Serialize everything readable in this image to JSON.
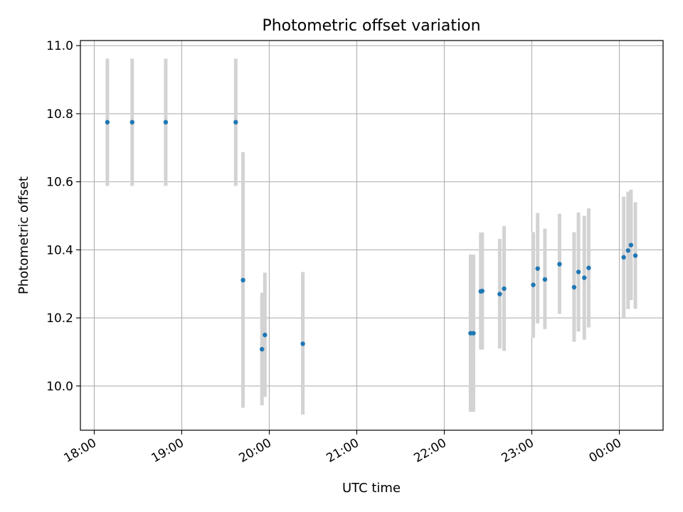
{
  "chart_data": {
    "type": "scatter",
    "title": "Photometric offset variation",
    "xlabel": "UTC time",
    "ylabel": "Photometric offset",
    "x_ticks": [
      "18:00",
      "19:00",
      "20:00",
      "21:00",
      "22:00",
      "23:00",
      "00:00"
    ],
    "x_tick_minutes": [
      1080,
      1140,
      1200,
      1260,
      1320,
      1380,
      1440
    ],
    "xlim_minutes": [
      1070.5,
      1470
    ],
    "ylim": [
      9.87,
      11.015
    ],
    "y_ticks": [
      10.0,
      10.2,
      10.4,
      10.6,
      10.8,
      11.0
    ],
    "y_tick_labels": [
      "10.0",
      "10.2",
      "10.4",
      "10.6",
      "10.8",
      "11.0"
    ],
    "grid": true,
    "colors": {
      "points": "#1f77b4",
      "errorbars": "#d3d3d3",
      "grid": "#b0b0b0"
    },
    "points": [
      {
        "x": "18:09",
        "y": 10.775,
        "ylo": 10.588,
        "yhi": 10.962
      },
      {
        "x": "18:26",
        "y": 10.775,
        "ylo": 10.588,
        "yhi": 10.962
      },
      {
        "x": "18:49",
        "y": 10.775,
        "ylo": 10.588,
        "yhi": 10.962
      },
      {
        "x": "19:37",
        "y": 10.775,
        "ylo": 10.588,
        "yhi": 10.962
      },
      {
        "x": "19:42",
        "y": 10.311,
        "ylo": 9.936,
        "yhi": 10.687
      },
      {
        "x": "19:55",
        "y": 10.108,
        "ylo": 9.943,
        "yhi": 10.274
      },
      {
        "x": "19:57",
        "y": 10.15,
        "ylo": 9.968,
        "yhi": 10.333
      },
      {
        "x": "20:23",
        "y": 10.124,
        "ylo": 9.916,
        "yhi": 10.335
      },
      {
        "x": "22:18",
        "y": 10.155,
        "ylo": 9.924,
        "yhi": 10.386
      },
      {
        "x": "22:20",
        "y": 10.155,
        "ylo": 9.924,
        "yhi": 10.386
      },
      {
        "x": "22:25",
        "y": 10.278,
        "ylo": 10.107,
        "yhi": 10.451
      },
      {
        "x": "22:26",
        "y": 10.279,
        "ylo": 10.107,
        "yhi": 10.451
      },
      {
        "x": "22:38",
        "y": 10.27,
        "ylo": 10.11,
        "yhi": 10.432
      },
      {
        "x": "22:41",
        "y": 10.286,
        "ylo": 10.103,
        "yhi": 10.47
      },
      {
        "x": "23:01",
        "y": 10.297,
        "ylo": 10.142,
        "yhi": 10.452
      },
      {
        "x": "23:04",
        "y": 10.345,
        "ylo": 10.184,
        "yhi": 10.508
      },
      {
        "x": "23:09",
        "y": 10.313,
        "ylo": 10.167,
        "yhi": 10.462
      },
      {
        "x": "23:19",
        "y": 10.358,
        "ylo": 10.212,
        "yhi": 10.506
      },
      {
        "x": "23:29",
        "y": 10.29,
        "ylo": 10.13,
        "yhi": 10.452
      },
      {
        "x": "23:32",
        "y": 10.335,
        "ylo": 10.16,
        "yhi": 10.51
      },
      {
        "x": "23:36",
        "y": 10.318,
        "ylo": 10.136,
        "yhi": 10.5
      },
      {
        "x": "23:39",
        "y": 10.347,
        "ylo": 10.172,
        "yhi": 10.522
      },
      {
        "x": "00:03",
        "y": 10.378,
        "ylo": 10.202,
        "yhi": 10.556
      },
      {
        "x": "00:06",
        "y": 10.398,
        "ylo": 10.226,
        "yhi": 10.571
      },
      {
        "x": "00:08",
        "y": 10.414,
        "ylo": 10.252,
        "yhi": 10.577
      },
      {
        "x": "00:11",
        "y": 10.383,
        "ylo": 10.227,
        "yhi": 10.54
      }
    ]
  }
}
